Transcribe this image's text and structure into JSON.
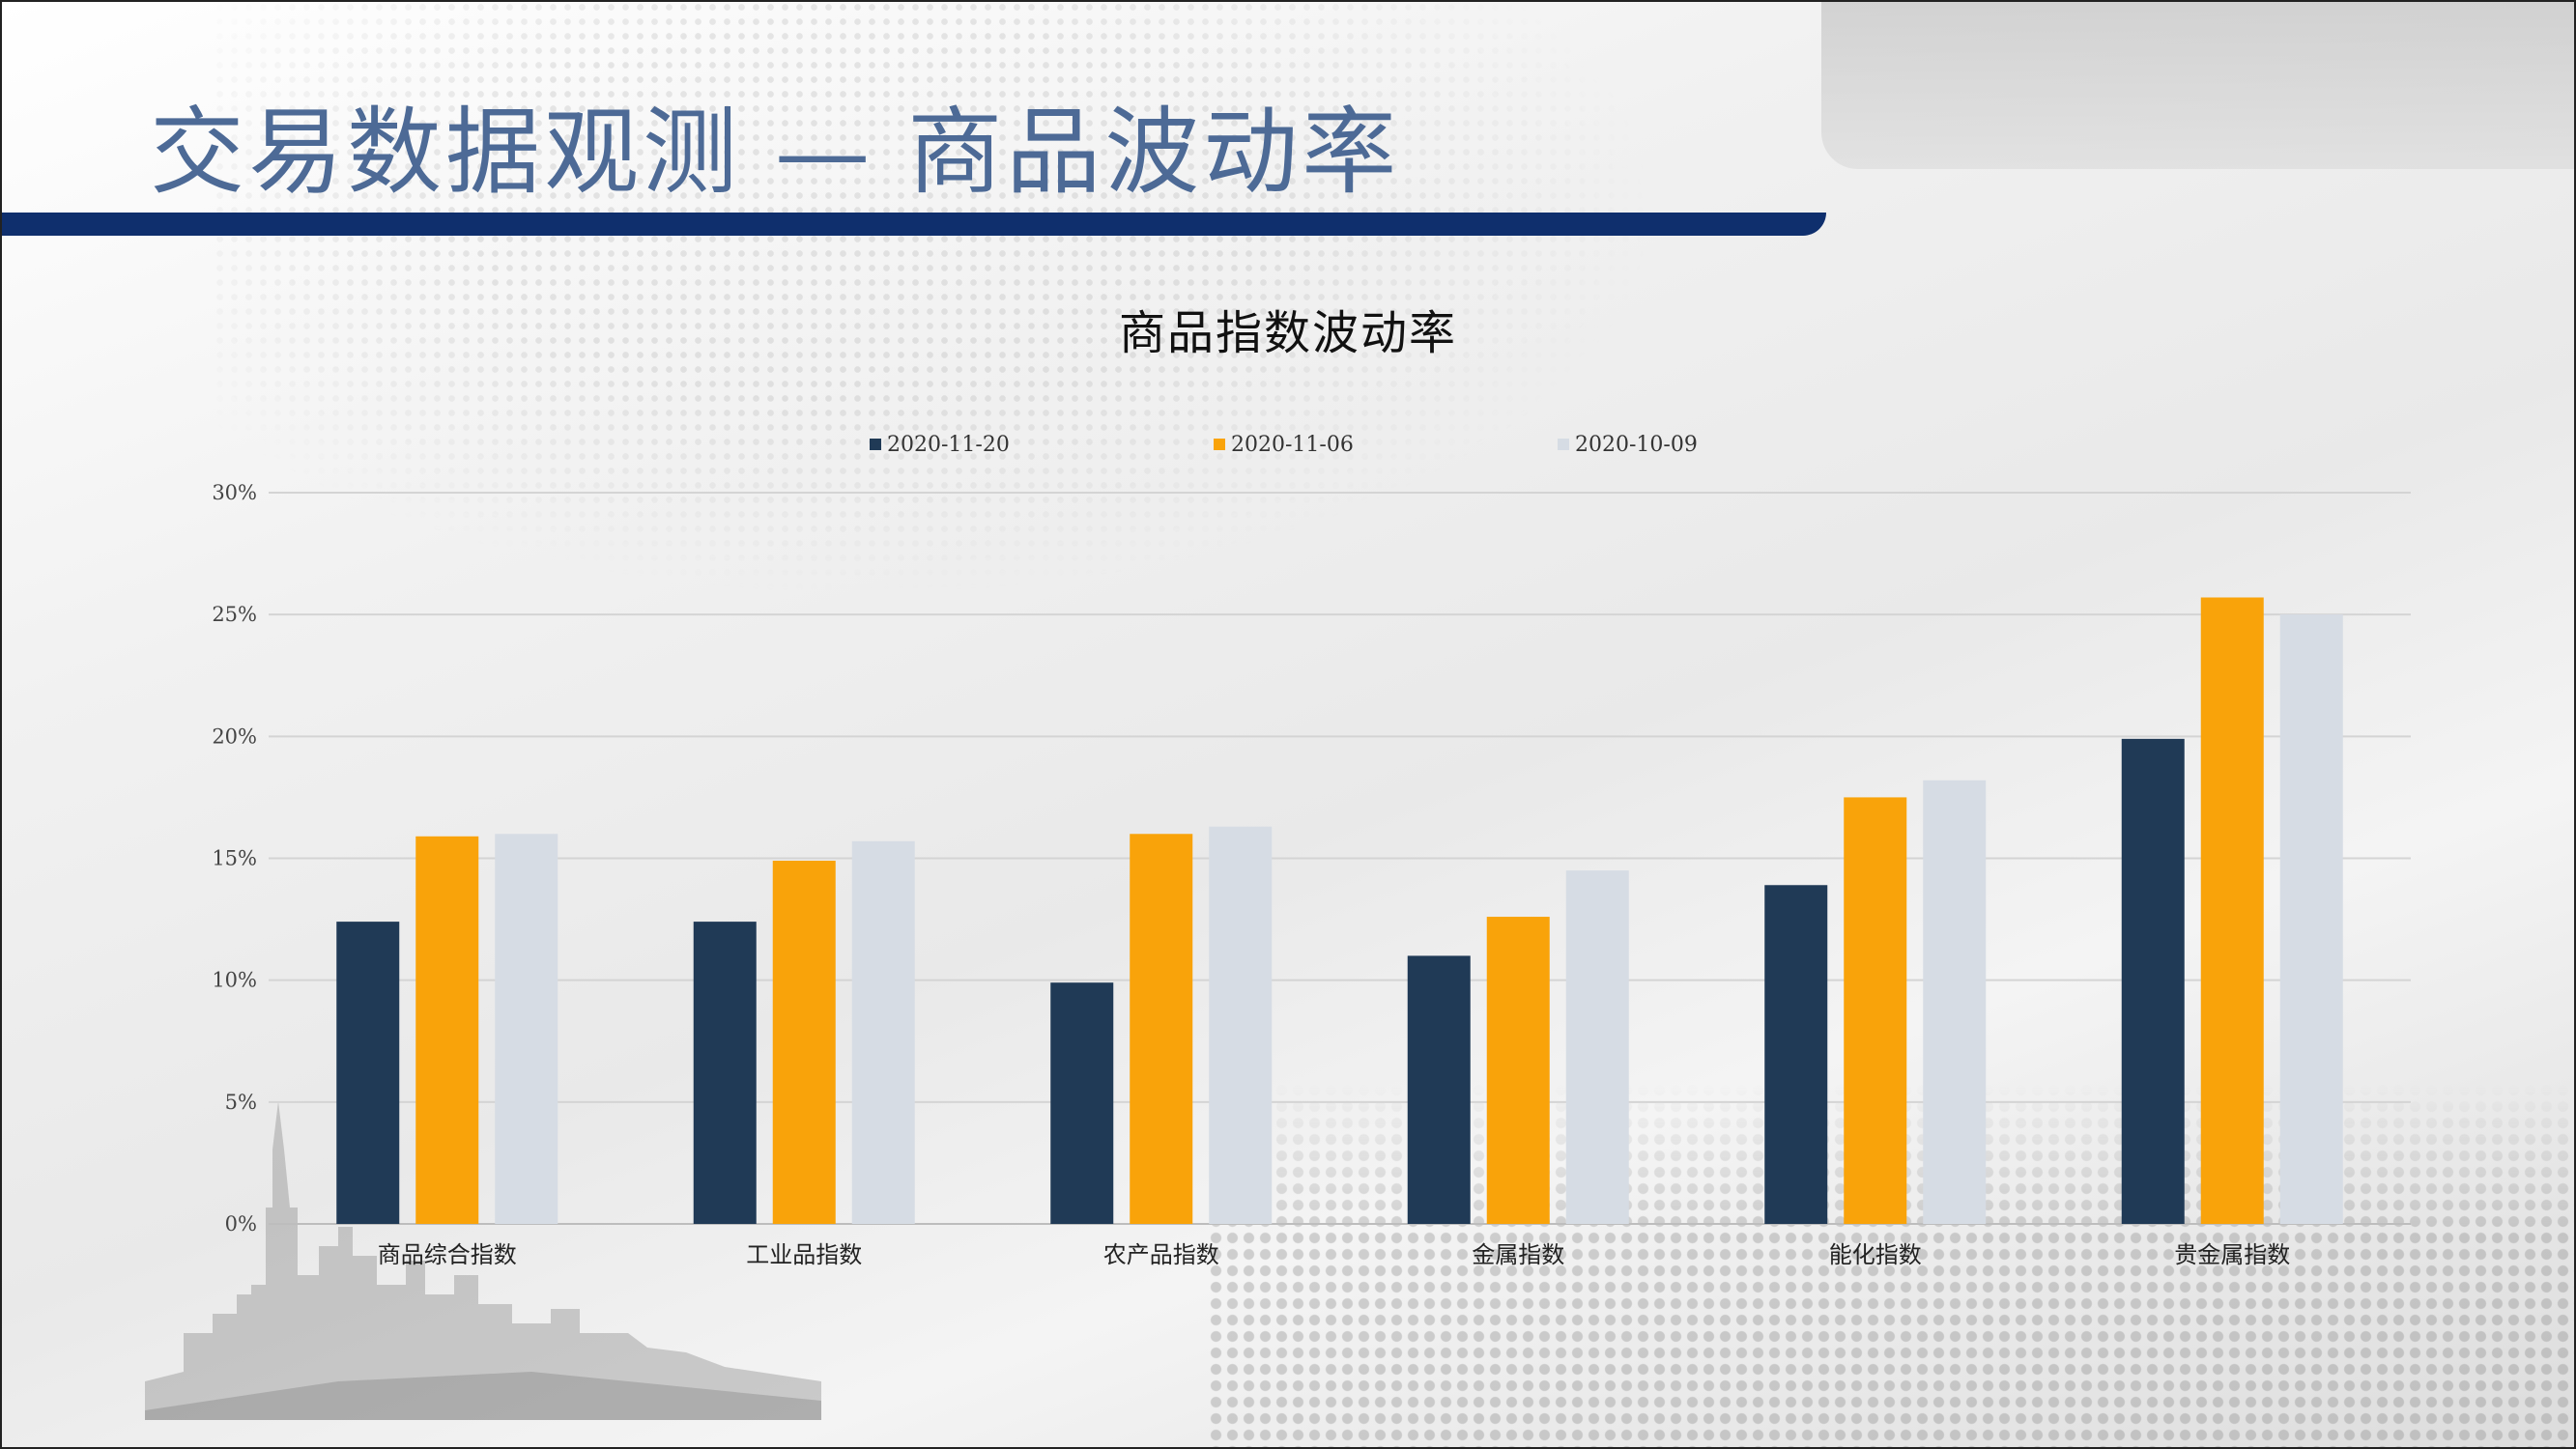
{
  "slide": {
    "title": "交易数据观测 — 商品波动率"
  },
  "colors": {
    "header_bar": "#0f2f6d",
    "title_text": "#4d6a96"
  },
  "chart_data": {
    "type": "bar",
    "title": "商品指数波动率",
    "categories": [
      "商品综合指数",
      "工业品指数",
      "农产品指数",
      "金属指数",
      "能化指数",
      "贵金属指数"
    ],
    "series": [
      {
        "name": "2020-11-20",
        "color": "#203a56",
        "values": [
          12.4,
          12.4,
          9.9,
          11.0,
          13.9,
          19.9
        ]
      },
      {
        "name": "2020-11-06",
        "color": "#f9a30a",
        "values": [
          15.9,
          14.9,
          16.0,
          12.6,
          17.5,
          25.7
        ]
      },
      {
        "name": "2020-10-09",
        "color": "#d6dce4",
        "values": [
          16.0,
          15.7,
          16.3,
          14.5,
          18.2,
          25.0
        ]
      }
    ],
    "ylim": [
      0,
      30
    ],
    "yticks": [
      "0%",
      "5%",
      "10%",
      "15%",
      "20%",
      "25%",
      "30%"
    ],
    "ytick_values": [
      0,
      5,
      10,
      15,
      20,
      25,
      30
    ],
    "legend_position": "top",
    "grid": true
  }
}
